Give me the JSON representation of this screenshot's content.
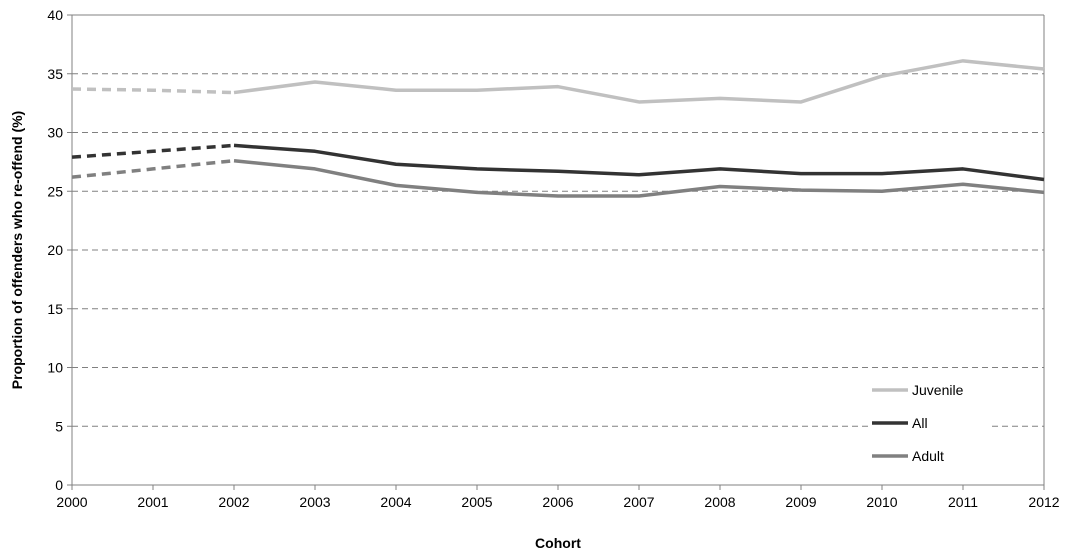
{
  "chart_data": {
    "type": "line",
    "xlabel": "Cohort",
    "ylabel": "Proportion of offenders who re-offend (%)",
    "x": [
      "2000",
      "2001",
      "2002",
      "2003",
      "2004",
      "2005",
      "2006",
      "2007",
      "2008",
      "2009",
      "2010",
      "2011",
      "2012"
    ],
    "ylim": [
      0,
      40
    ],
    "yticks": [
      "0",
      "5",
      "10",
      "15",
      "20",
      "25",
      "30",
      "35",
      "40"
    ],
    "grid": "horizontal dashed",
    "legend_position": "bottom-right",
    "dashed_segment": [
      "2000",
      "2002"
    ],
    "series": [
      {
        "name": "Juvenile",
        "color": "#c0c0c0",
        "values": [
          33.7,
          33.6,
          33.4,
          34.3,
          33.6,
          33.6,
          33.9,
          32.6,
          32.9,
          32.6,
          34.8,
          36.1,
          35.4
        ]
      },
      {
        "name": "All",
        "color": "#333333",
        "values": [
          27.9,
          28.4,
          28.9,
          28.4,
          27.3,
          26.9,
          26.7,
          26.4,
          26.9,
          26.5,
          26.5,
          26.9,
          26.0
        ]
      },
      {
        "name": "Adult",
        "color": "#808080",
        "values": [
          26.2,
          26.9,
          27.6,
          26.9,
          25.5,
          24.9,
          24.6,
          24.6,
          25.4,
          25.1,
          25.0,
          25.6,
          24.9
        ]
      }
    ]
  }
}
